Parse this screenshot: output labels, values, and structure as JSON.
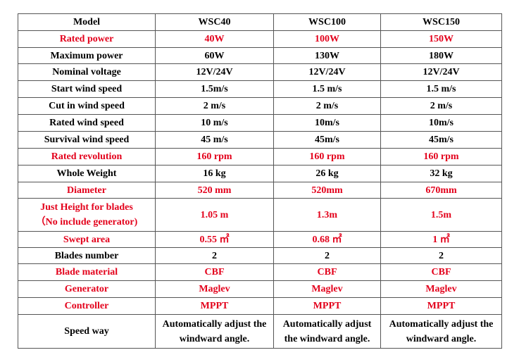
{
  "table": {
    "header": [
      "Model",
      "WSC40",
      "WSC100",
      "WSC150"
    ],
    "rows": [
      {
        "cells": [
          "Rated power",
          "40W",
          "100W",
          "150W"
        ],
        "color": "#e3001b"
      },
      {
        "cells": [
          "Maximum power",
          "60W",
          "130W",
          "180W"
        ],
        "color": "#000000"
      },
      {
        "cells": [
          "Nominal voltage",
          "12V/24V",
          "12V/24V",
          "12V/24V"
        ],
        "color": "#000000"
      },
      {
        "cells": [
          "Start wind speed",
          "1.5m/s",
          "1.5 m/s",
          "1.5 m/s"
        ],
        "color": "#000000"
      },
      {
        "cells": [
          "Cut in wind speed",
          "2 m/s",
          "2 m/s",
          "2 m/s"
        ],
        "color": "#000000"
      },
      {
        "cells": [
          "Rated wind speed",
          "10 m/s",
          "10m/s",
          "10m/s"
        ],
        "color": "#000000"
      },
      {
        "cells": [
          "Survival wind speed",
          "45 m/s",
          "45m/s",
          "45m/s"
        ],
        "color": "#000000"
      },
      {
        "cells": [
          "Rated  revolution",
          "160 rpm",
          "160 rpm",
          "160 rpm"
        ],
        "color": "#e3001b"
      },
      {
        "cells": [
          "Whole Weight",
          "16 kg",
          "26 kg",
          "32 kg"
        ],
        "color": "#000000"
      },
      {
        "cells": [
          "Diameter",
          "520 mm",
          "520mm",
          "670mm"
        ],
        "color": "#e3001b"
      },
      {
        "cells": [
          "Just Height for blades\n（No include generator)",
          "1.05 m",
          "1.3m",
          "1.5m"
        ],
        "color": "#e3001b"
      },
      {
        "cells": [
          "Swept area",
          "0.55 ㎡",
          "0.68 ㎡",
          "1 ㎡"
        ],
        "color": "#e3001b"
      },
      {
        "cells": [
          "Blades number",
          "2",
          "2",
          "2"
        ],
        "color": "#000000"
      },
      {
        "cells": [
          "Blade material",
          "CBF",
          "CBF",
          "CBF"
        ],
        "color": "#e3001b"
      },
      {
        "cells": [
          "Generator",
          "Maglev",
          "Maglev",
          "Maglev"
        ],
        "color": "#e3001b"
      },
      {
        "cells": [
          "Controller",
          "MPPT",
          "MPPT",
          "MPPT"
        ],
        "color": "#e3001b"
      },
      {
        "cells": [
          "Speed way",
          "Automatically adjust the\nwindward angle.",
          "Automatically adjust\nthe windward angle.",
          "Automatically adjust the\nwindward angle."
        ],
        "color": "#000000"
      }
    ]
  }
}
